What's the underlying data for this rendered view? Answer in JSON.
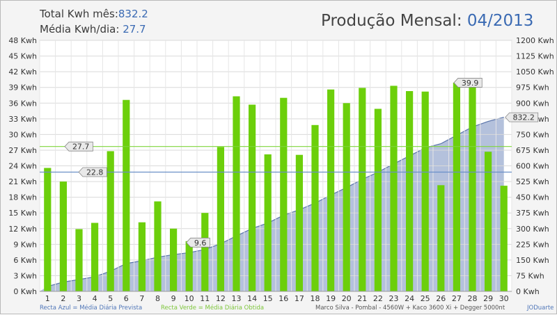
{
  "header": {
    "total_label": "Total Kwh mês:",
    "total_value": "832.2",
    "avg_label": "Média Kwh/dia:",
    "avg_value": "27.7",
    "title_label": "Produção Mensal:",
    "title_value": "04/2013"
  },
  "chart_data": {
    "type": "bar",
    "title": "Produção Mensal: 04/2013",
    "categories": [
      "1",
      "2",
      "3",
      "4",
      "5",
      "6",
      "7",
      "8",
      "9",
      "10",
      "11",
      "12",
      "13",
      "14",
      "15",
      "16",
      "17",
      "18",
      "19",
      "20",
      "21",
      "22",
      "23",
      "24",
      "25",
      "26",
      "27",
      "28",
      "29",
      "30"
    ],
    "series": [
      {
        "type": "bar",
        "axis": "left",
        "color": "#6ccf0b",
        "values": [
          23.6,
          21.0,
          11.9,
          13.1,
          26.8,
          36.6,
          13.2,
          17.2,
          12.0,
          9.6,
          15.0,
          27.6,
          37.3,
          35.7,
          26.2,
          37.0,
          26.1,
          31.8,
          38.6,
          36.0,
          38.9,
          34.9,
          39.3,
          38.3,
          38.2,
          20.3,
          39.9,
          39.6,
          26.7,
          20.2
        ]
      },
      {
        "type": "area",
        "axis": "right",
        "color": "#a7b6d6",
        "values": [
          23.6,
          44.6,
          56.5,
          69.6,
          96.4,
          133.0,
          146.2,
          163.4,
          175.4,
          185.0,
          200.0,
          227.6,
          264.9,
          300.6,
          326.8,
          363.8,
          389.9,
          421.7,
          460.3,
          496.3,
          535.2,
          570.1,
          609.4,
          647.7,
          685.9,
          706.2,
          746.1,
          785.7,
          812.4,
          832.2
        ]
      }
    ],
    "reference_lines": [
      {
        "value": 27.7,
        "label": "27.7",
        "color": "#7fd63a"
      },
      {
        "value": 22.8,
        "label": "22.8",
        "color": "#6a8fc7"
      }
    ],
    "callouts": [
      {
        "day": "10",
        "label": "9.6"
      },
      {
        "day": "27",
        "label": "39.9"
      },
      {
        "day": "30",
        "label": "832.2",
        "axis": "right"
      }
    ],
    "y_left": {
      "min": 0,
      "max": 48,
      "step": 3,
      "unit": " Kwh"
    },
    "y_right": {
      "min": 0,
      "max": 1200,
      "step": 75,
      "unit": " Kwh"
    },
    "grid": true
  },
  "footer": {
    "blue_note": "Recta Azul = Média Diária Prevista",
    "green_note": "Recta Verde = Média Diária Obtida",
    "system_note": "Marco Silva - Pombal - 4560W + Kaco 3600 Xi + Degger 5000nt",
    "author": "JODuarte"
  }
}
